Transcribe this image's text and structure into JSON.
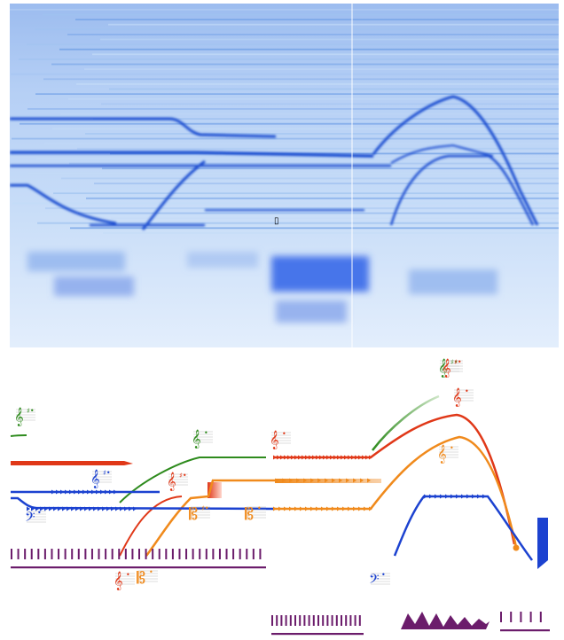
{
  "spectrogram": {
    "background": "#d6e8fb",
    "band_colors": [
      "#c3dbf7",
      "#9fc2f0",
      "#6f9fe6"
    ],
    "line_color": "#1d4ed0",
    "bright_blob_color": "#2d62e8",
    "cursor_marker": "▯"
  },
  "score": {
    "colors": {
      "green": "#2e8b1d",
      "red": "#e03818",
      "blue": "#1c42d0",
      "orange": "#f08a1c",
      "purple": "#6b1c6b",
      "light_green": "#a8d0a0"
    },
    "clefs": [
      {
        "symbol": "𝄞",
        "accidental": "♯•",
        "color": "#2e8b1d"
      },
      {
        "symbol": "𝄞",
        "accidental": "•",
        "color": "#2e8b1d"
      },
      {
        "symbol": "𝄞",
        "accidental": "♯•",
        "color": "#1c42d0"
      },
      {
        "symbol": "𝄢",
        "accidental": "•",
        "color": "#1c42d0"
      },
      {
        "symbol": "𝄞",
        "accidental": "•",
        "color": "#e03818"
      },
      {
        "symbol": "𝄞",
        "accidental": "♯•",
        "color": "#e03818"
      },
      {
        "symbol": "𝄡",
        "accidental": "♯•",
        "color": "#f08a1c"
      },
      {
        "symbol": "𝄡",
        "accidental": "•",
        "color": "#f08a1c"
      },
      {
        "symbol": "𝄞",
        "accidental": "•",
        "color": "#e03818"
      },
      {
        "symbol": "𝄞",
        "accidental": "♯•",
        "color": "#2e8b1d"
      },
      {
        "symbol": "𝄞",
        "accidental": "•",
        "color": "#e03818"
      },
      {
        "symbol": "𝄞",
        "accidental": "•",
        "color": "#f08a1c"
      },
      {
        "symbol": "𝄡",
        "accidental": "•",
        "color": "#f08a1c"
      },
      {
        "symbol": "𝄞",
        "accidental": "♯•",
        "color": "#e03818"
      },
      {
        "symbol": "𝄢",
        "accidental": "•",
        "color": "#1c42d0"
      }
    ]
  }
}
